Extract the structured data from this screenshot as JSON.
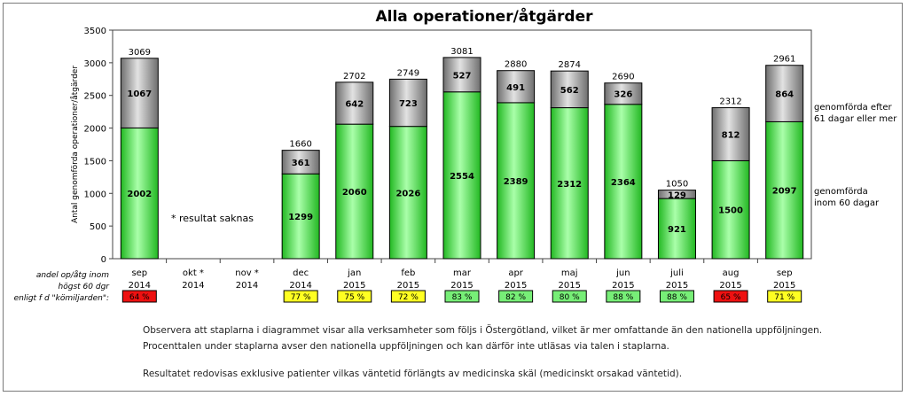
{
  "chart_data": {
    "type": "bar",
    "stacked": true,
    "title": "Alla operationer/åtgärder",
    "ylabel": "Antal genomförda operationer/åtgärder",
    "ylim": [
      0,
      3500
    ],
    "yticks": [
      0,
      500,
      1000,
      1500,
      2000,
      2500,
      3000,
      3500
    ],
    "categories": [
      {
        "month": "sep",
        "year": "2014"
      },
      {
        "month": "okt *",
        "year": "2014"
      },
      {
        "month": "nov *",
        "year": "2014"
      },
      {
        "month": "dec",
        "year": "2014"
      },
      {
        "month": "jan",
        "year": "2015"
      },
      {
        "month": "feb",
        "year": "2015"
      },
      {
        "month": "mar",
        "year": "2015"
      },
      {
        "month": "apr",
        "year": "2015"
      },
      {
        "month": "maj",
        "year": "2015"
      },
      {
        "month": "jun",
        "year": "2015"
      },
      {
        "month": "juli",
        "year": "2015"
      },
      {
        "month": "aug",
        "year": "2015"
      },
      {
        "month": "sep",
        "year": "2015"
      }
    ],
    "series": [
      {
        "name": "genomförda inom 60 dagar",
        "values": [
          2002,
          null,
          null,
          1299,
          2060,
          2026,
          2554,
          2389,
          2312,
          2364,
          921,
          1500,
          2097
        ],
        "color": "#44dd44"
      },
      {
        "name": "genomförda efter 61 dagar eller mer",
        "values": [
          1067,
          null,
          null,
          361,
          642,
          723,
          527,
          491,
          562,
          326,
          129,
          812,
          864
        ],
        "color": "#9a9a9a"
      }
    ],
    "totals": [
      3069,
      null,
      null,
      1660,
      2702,
      2749,
      3081,
      2880,
      2874,
      2690,
      1050,
      2312,
      2961
    ],
    "legend_labels": [
      [
        "genomförda efter",
        "61 dagar eller mer"
      ],
      [
        "genomförda",
        "inom 60 dagar"
      ]
    ],
    "annotation": "*  resultat saknas",
    "percent_row": {
      "label_lines": [
        "andel op/åtg inom",
        "högst 60 dgr",
        "enligt  f d \"kömiljarden\":"
      ],
      "values": [
        "64 %",
        null,
        null,
        "77 %",
        "75 %",
        "72 %",
        "83 %",
        "82 %",
        "80 %",
        "88 %",
        "88 %",
        "65 %",
        "71 %"
      ],
      "status": [
        "red",
        null,
        null,
        "yellow",
        "yellow",
        "yellow",
        "green",
        "green",
        "green",
        "green",
        "green",
        "red",
        "yellow"
      ]
    }
  },
  "colors": {
    "red": "#ee1111",
    "yellow": "#ffff22",
    "green": "#77ee77"
  },
  "notes": [
    "Observera att staplarna i diagrammet visar alla verksamheter som följs i Östergötland, vilket är mer omfattande än den nationella uppföljningen.",
    "Procenttalen under staplarna avser den nationella uppföljningen och kan därför inte utläsas via talen i staplarna.",
    "Resultatet redovisas exklusive patienter vilkas väntetid förlängts av medicinska skäl (medicinskt  orsakad väntetid)."
  ]
}
